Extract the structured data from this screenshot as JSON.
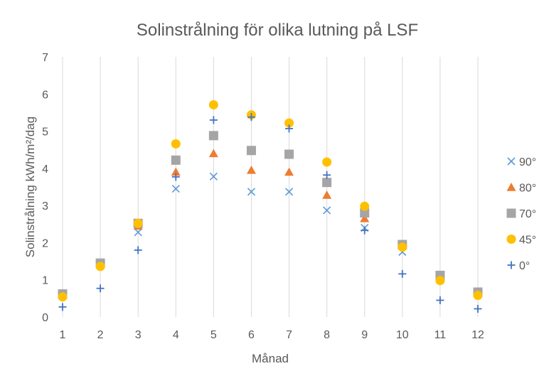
{
  "chart_data": {
    "type": "scatter",
    "title": "Solinstrålning för olika lutning på LSF",
    "xlabel": "Månad",
    "ylabel": "Solinstrålning kWh/m²/dag",
    "xlim": [
      1,
      12
    ],
    "ylim": [
      0,
      7
    ],
    "x_ticks": [
      1,
      2,
      3,
      4,
      5,
      6,
      7,
      8,
      9,
      10,
      11,
      12
    ],
    "y_ticks": [
      0,
      1,
      2,
      3,
      4,
      5,
      6,
      7
    ],
    "grid": "vertical",
    "legend_position": "right",
    "x": [
      1,
      2,
      3,
      4,
      5,
      6,
      7,
      8,
      9,
      10,
      11,
      12
    ],
    "series": [
      {
        "name": "90°",
        "marker": "x",
        "color": "#5b9bd5",
        "values": [
          0.62,
          1.45,
          2.28,
          3.45,
          3.78,
          3.37,
          3.37,
          2.87,
          2.4,
          1.75,
          1.1,
          0.67
        ]
      },
      {
        "name": "80°",
        "marker": "triangle",
        "color": "#ed7d31",
        "values": [
          0.63,
          1.45,
          2.45,
          3.9,
          4.4,
          3.95,
          3.9,
          3.28,
          2.65,
          1.92,
          1.05,
          0.65
        ]
      },
      {
        "name": "70°",
        "marker": "square",
        "color": "#a5a5a5",
        "values": [
          0.62,
          1.45,
          2.52,
          4.22,
          4.88,
          4.48,
          4.38,
          3.62,
          2.8,
          1.95,
          1.12,
          0.67
        ]
      },
      {
        "name": "45°",
        "marker": "circle",
        "color": "#ffc000",
        "values": [
          0.54,
          1.36,
          2.52,
          4.66,
          5.71,
          5.44,
          5.22,
          4.17,
          2.98,
          1.88,
          0.98,
          0.58
        ]
      },
      {
        "name": "0°",
        "marker": "plus",
        "color": "#4472c4",
        "values": [
          0.27,
          0.77,
          1.8,
          3.77,
          5.3,
          5.38,
          5.07,
          3.82,
          2.33,
          1.16,
          0.45,
          0.22
        ]
      }
    ]
  }
}
